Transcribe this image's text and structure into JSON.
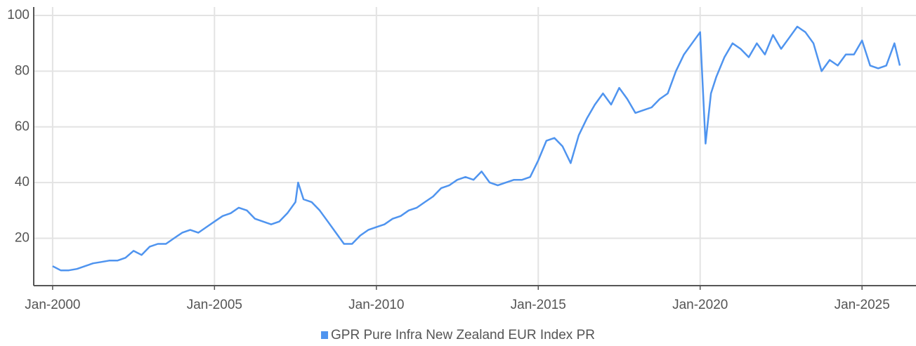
{
  "chart_data": {
    "type": "line",
    "x": [
      "2000-01",
      "2000-04",
      "2000-07",
      "2000-10",
      "2001-01",
      "2001-04",
      "2001-07",
      "2001-10",
      "2002-01",
      "2002-04",
      "2002-07",
      "2002-10",
      "2003-01",
      "2003-04",
      "2003-07",
      "2003-10",
      "2004-01",
      "2004-04",
      "2004-07",
      "2004-10",
      "2005-01",
      "2005-04",
      "2005-07",
      "2005-10",
      "2006-01",
      "2006-04",
      "2006-07",
      "2006-10",
      "2007-01",
      "2007-04",
      "2007-07",
      "2007-08",
      "2007-10",
      "2008-01",
      "2008-04",
      "2008-07",
      "2008-10",
      "2009-01",
      "2009-04",
      "2009-07",
      "2009-10",
      "2010-01",
      "2010-04",
      "2010-07",
      "2010-10",
      "2011-01",
      "2011-04",
      "2011-07",
      "2011-10",
      "2012-01",
      "2012-04",
      "2012-07",
      "2012-10",
      "2013-01",
      "2013-04",
      "2013-07",
      "2013-10",
      "2014-01",
      "2014-04",
      "2014-07",
      "2014-10",
      "2015-01",
      "2015-04",
      "2015-07",
      "2015-10",
      "2016-01",
      "2016-04",
      "2016-07",
      "2016-10",
      "2017-01",
      "2017-04",
      "2017-07",
      "2017-10",
      "2018-01",
      "2018-04",
      "2018-07",
      "2018-10",
      "2019-01",
      "2019-04",
      "2019-07",
      "2019-10",
      "2020-01",
      "2020-03",
      "2020-05",
      "2020-07",
      "2020-10",
      "2021-01",
      "2021-04",
      "2021-07",
      "2021-10",
      "2022-01",
      "2022-04",
      "2022-07",
      "2022-10",
      "2023-01",
      "2023-04",
      "2023-07",
      "2023-10",
      "2024-01",
      "2024-04",
      "2024-07",
      "2024-10",
      "2025-01",
      "2025-04",
      "2025-07",
      "2025-10",
      "2026-01",
      "2026-03"
    ],
    "series": [
      {
        "name": "GPR Pure Infra New Zealand EUR Index PR",
        "color": "#4f94ef",
        "values": [
          10,
          8.5,
          8.5,
          9,
          10,
          11,
          11.5,
          12,
          12,
          13,
          15.5,
          14,
          17,
          18,
          18,
          20,
          22,
          23,
          22,
          24,
          26,
          28,
          29,
          31,
          30,
          27,
          26,
          25,
          26,
          29,
          33,
          40,
          34,
          33,
          30,
          26,
          22,
          18,
          18,
          21,
          23,
          24,
          25,
          27,
          28,
          30,
          31,
          33,
          35,
          38,
          39,
          41,
          42,
          41,
          44,
          40,
          39,
          40,
          41,
          41,
          42,
          48,
          55,
          56,
          53,
          47,
          57,
          63,
          68,
          72,
          68,
          74,
          70,
          65,
          66,
          67,
          70,
          72,
          80,
          86,
          90,
          94,
          54,
          72,
          78,
          85,
          90,
          88,
          85,
          90,
          86,
          93,
          88,
          92,
          96,
          94,
          90,
          80,
          84,
          82,
          86,
          86,
          91,
          82,
          81,
          82,
          90,
          82
        ]
      }
    ],
    "xlim": [
      "1999-06",
      "2026-09"
    ],
    "xticks": [
      {
        "value": "2000-01",
        "label": "Jan-2000"
      },
      {
        "value": "2005-01",
        "label": "Jan-2005"
      },
      {
        "value": "2010-01",
        "label": "Jan-2010"
      },
      {
        "value": "2015-01",
        "label": "Jan-2015"
      },
      {
        "value": "2020-01",
        "label": "Jan-2020"
      },
      {
        "value": "2025-01",
        "label": "Jan-2025"
      }
    ],
    "ylim": [
      3,
      100
    ],
    "yticks": [
      20,
      40,
      60,
      80,
      100
    ],
    "grid": true
  }
}
